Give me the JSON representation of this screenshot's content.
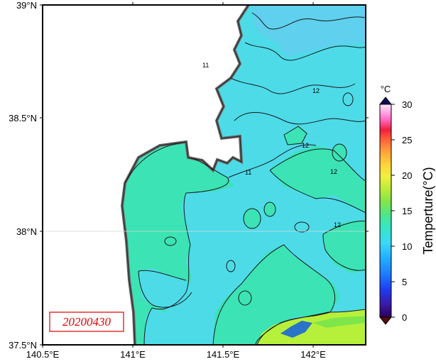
{
  "date_stamp": "20200430",
  "colorbar": {
    "unit": "°C",
    "label": "Temperture(°C)",
    "tick_labels": [
      "30",
      "25",
      "20",
      "15",
      "10",
      "5",
      "0"
    ],
    "range": [
      0,
      30
    ]
  },
  "axes": {
    "lat_labels": [
      "39°N",
      "38.5°N",
      "38°N",
      "37.5°N"
    ],
    "lon_labels": [
      "140.5°E",
      "141°E",
      "141.5°E",
      "142°E"
    ]
  },
  "contour_labels": [
    "12",
    "11",
    "12",
    "12",
    "11",
    "12"
  ],
  "colors": {
    "land": "#ffffff",
    "coast_shadow": "#666666",
    "sst_11": "#4ddbe8",
    "sst_12": "#3ce3b5",
    "sst_10": "#5fd0ee",
    "warm_15": "#b7f03a",
    "date_color": "#e00000"
  }
}
